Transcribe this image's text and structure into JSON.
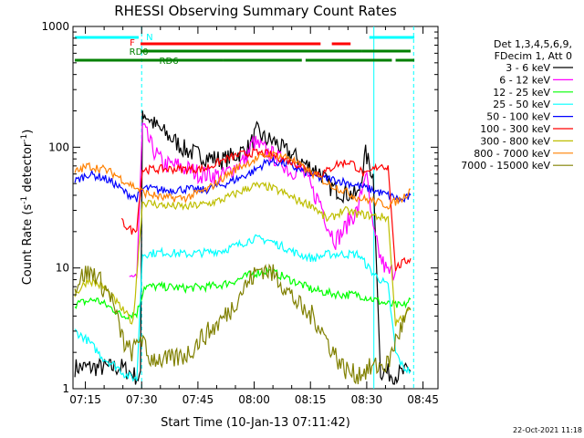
{
  "chart_data": {
    "type": "line",
    "title": "RHESSI Observing Summary Count Rates",
    "xlabel": "Start Time (10-Jan-13 07:11:42)",
    "ylabel": "Count Rate (s⁻¹ detector⁻¹)",
    "ylabel_main": "Count Rate (s",
    "ylabel_sup1": "-1",
    "ylabel_mid": " detector",
    "ylabel_sup2": "-1",
    "ylabel_end": ")",
    "y_scale": "log",
    "ylim": [
      1,
      1000
    ],
    "xlim": [
      "07:11:42",
      "08:49"
    ],
    "x_ticks": [
      "07:15",
      "07:30",
      "07:45",
      "08:00",
      "08:15",
      "08:30",
      "08:45"
    ],
    "y_ticks": [
      "1",
      "10",
      "100",
      "1000"
    ],
    "footer": "22-Oct-2021 11:18",
    "legend": {
      "header_lines": [
        "Det 1,3,4,5,6,9,",
        "FDecim 1, Att 0"
      ],
      "placement": "right"
    },
    "series": [
      {
        "name": "3 - 6 keV",
        "color": "#000000",
        "values": [
          [
            0.5,
            1.5
          ],
          [
            13,
            1.5
          ],
          [
            18,
            1.2
          ],
          [
            18.5,
            200
          ],
          [
            22,
            150
          ],
          [
            26,
            120
          ],
          [
            30,
            95
          ],
          [
            34,
            85
          ],
          [
            40,
            78
          ],
          [
            44,
            88
          ],
          [
            47,
            100
          ],
          [
            49,
            135
          ],
          [
            51,
            118
          ],
          [
            54,
            110
          ],
          [
            56,
            95
          ],
          [
            58,
            88
          ],
          [
            62,
            72
          ],
          [
            66,
            62
          ],
          [
            68,
            48
          ],
          [
            72,
            42
          ],
          [
            76,
            40
          ],
          [
            78,
            88
          ],
          [
            80,
            58
          ],
          [
            82,
            1.4
          ],
          [
            86,
            1.3
          ],
          [
            90,
            1.4
          ]
        ]
      },
      {
        "name": "6 - 12 keV",
        "color": "#ff00ff",
        "values": [
          [
            15,
            9
          ],
          [
            17,
            8
          ],
          [
            18.5,
            150
          ],
          [
            21,
            100
          ],
          [
            24,
            72
          ],
          [
            28,
            70
          ],
          [
            34,
            60
          ],
          [
            40,
            58
          ],
          [
            43,
            68
          ],
          [
            46,
            80
          ],
          [
            48,
            110
          ],
          [
            51,
            95
          ],
          [
            54,
            82
          ],
          [
            56,
            75
          ],
          [
            58,
            62
          ],
          [
            60,
            68
          ],
          [
            62,
            58
          ],
          [
            64,
            42
          ],
          [
            66,
            35
          ],
          [
            68,
            22
          ],
          [
            70,
            17
          ],
          [
            72,
            20
          ],
          [
            74,
            26
          ],
          [
            76,
            30
          ],
          [
            78,
            65
          ],
          [
            80,
            20
          ],
          [
            82,
            12
          ],
          [
            84,
            9
          ],
          [
            86,
            9.5
          ]
        ]
      },
      {
        "name": "12 - 25 keV",
        "color": "#00ff00",
        "values": [
          [
            0.5,
            5
          ],
          [
            6,
            5.5
          ],
          [
            11,
            4.5
          ],
          [
            13,
            4
          ],
          [
            17,
            4.2
          ],
          [
            19,
            7
          ],
          [
            24,
            7
          ],
          [
            30,
            6.8
          ],
          [
            36,
            7
          ],
          [
            40,
            7.3
          ],
          [
            44,
            8
          ],
          [
            48,
            9
          ],
          [
            52,
            9.5
          ],
          [
            56,
            8.5
          ],
          [
            60,
            7.5
          ],
          [
            64,
            6.6
          ],
          [
            68,
            6.2
          ],
          [
            72,
            6
          ],
          [
            76,
            6
          ],
          [
            80,
            5.5
          ],
          [
            84,
            5
          ],
          [
            88,
            4.8
          ],
          [
            90,
            5.5
          ]
        ]
      },
      {
        "name": "25 - 50 keV",
        "color": "#00ffff",
        "values": [
          [
            0.5,
            3
          ],
          [
            4,
            2.5
          ],
          [
            8,
            1.8
          ],
          [
            12,
            1.5
          ],
          [
            14,
            1.3
          ],
          [
            17,
            1.2
          ],
          [
            18.5,
            13
          ],
          [
            24,
            13.5
          ],
          [
            30,
            13
          ],
          [
            36,
            13.5
          ],
          [
            40,
            14
          ],
          [
            44,
            15.5
          ],
          [
            48,
            17.5
          ],
          [
            52,
            17
          ],
          [
            56,
            15
          ],
          [
            60,
            13
          ],
          [
            64,
            12
          ],
          [
            68,
            13
          ],
          [
            72,
            13
          ],
          [
            76,
            13
          ],
          [
            80,
            9
          ],
          [
            82,
            8
          ],
          [
            84,
            7
          ],
          [
            86,
            2
          ],
          [
            88,
            1.5
          ],
          [
            90,
            1.4
          ]
        ]
      },
      {
        "name": "50 - 100 keV",
        "color": "#0000ff",
        "values": [
          [
            0.5,
            52
          ],
          [
            4,
            60
          ],
          [
            8,
            56
          ],
          [
            11,
            50
          ],
          [
            14,
            42
          ],
          [
            17,
            38
          ],
          [
            19,
            46
          ],
          [
            24,
            44
          ],
          [
            30,
            45
          ],
          [
            35,
            44
          ],
          [
            40,
            49
          ],
          [
            44,
            55
          ],
          [
            48,
            63
          ],
          [
            52,
            77
          ],
          [
            56,
            74
          ],
          [
            58,
            70
          ],
          [
            62,
            62
          ],
          [
            66,
            55
          ],
          [
            68,
            55
          ],
          [
            72,
            52
          ],
          [
            76,
            48
          ],
          [
            80,
            44
          ],
          [
            84,
            40
          ],
          [
            86,
            38
          ],
          [
            88,
            36
          ],
          [
            90,
            40
          ]
        ]
      },
      {
        "name": "100 - 300 keV",
        "color": "#ff0000",
        "values": [
          [
            13,
            24
          ],
          [
            16,
            20
          ],
          [
            17,
            22
          ],
          [
            18.5,
            65
          ],
          [
            24,
            66
          ],
          [
            30,
            66
          ],
          [
            35,
            66
          ],
          [
            40,
            78
          ],
          [
            44,
            86
          ],
          [
            48,
            90
          ],
          [
            52,
            88
          ],
          [
            56,
            80
          ],
          [
            60,
            72
          ],
          [
            62,
            68
          ],
          [
            64,
            62
          ],
          [
            66,
            60
          ],
          [
            68,
            64
          ],
          [
            70,
            72
          ],
          [
            74,
            76
          ],
          [
            78,
            58
          ],
          [
            80,
            65
          ],
          [
            82,
            72
          ],
          [
            84,
            68
          ],
          [
            86,
            10
          ],
          [
            88,
            11
          ],
          [
            90,
            12
          ]
        ]
      },
      {
        "name": "300 - 800 keV",
        "color": "#bebe00",
        "values": [
          [
            0.5,
            6
          ],
          [
            4,
            8
          ],
          [
            8,
            7
          ],
          [
            12,
            5
          ],
          [
            14,
            4.2
          ],
          [
            16,
            3.5
          ],
          [
            18.5,
            35
          ],
          [
            24,
            33
          ],
          [
            30,
            32
          ],
          [
            36,
            34
          ],
          [
            40,
            37
          ],
          [
            44,
            42
          ],
          [
            48,
            48
          ],
          [
            52,
            47
          ],
          [
            56,
            42
          ],
          [
            60,
            36
          ],
          [
            64,
            33
          ],
          [
            66,
            28
          ],
          [
            68,
            25
          ],
          [
            72,
            30
          ],
          [
            76,
            28
          ],
          [
            80,
            27
          ],
          [
            84,
            26
          ],
          [
            86,
            3.5
          ],
          [
            88,
            4
          ],
          [
            90,
            4.5
          ]
        ]
      },
      {
        "name": "800 - 7000 keV",
        "color": "#ff8000",
        "values": [
          [
            0.5,
            62
          ],
          [
            4,
            70
          ],
          [
            8,
            66
          ],
          [
            11,
            60
          ],
          [
            14,
            52
          ],
          [
            17,
            46
          ],
          [
            19,
            42
          ],
          [
            24,
            38
          ],
          [
            30,
            38
          ],
          [
            36,
            45
          ],
          [
            40,
            56
          ],
          [
            44,
            68
          ],
          [
            48,
            78
          ],
          [
            52,
            87
          ],
          [
            54,
            86
          ],
          [
            58,
            82
          ],
          [
            60,
            72
          ],
          [
            64,
            60
          ],
          [
            68,
            50
          ],
          [
            72,
            44
          ],
          [
            76,
            38
          ],
          [
            80,
            36
          ],
          [
            84,
            33
          ],
          [
            88,
            38
          ],
          [
            90,
            45
          ]
        ]
      },
      {
        "name": "7000 - 15000 keV",
        "color": "#808000",
        "values": [
          [
            0.5,
            7
          ],
          [
            3,
            9
          ],
          [
            6,
            9
          ],
          [
            8,
            7
          ],
          [
            10,
            6
          ],
          [
            12,
            3.5
          ],
          [
            14,
            2.2
          ],
          [
            16,
            2
          ],
          [
            18,
            2.8
          ],
          [
            20,
            1.8
          ],
          [
            22,
            1.8
          ],
          [
            25,
            1.7
          ],
          [
            28,
            1.8
          ],
          [
            31,
            2
          ],
          [
            34,
            2.6
          ],
          [
            38,
            3.3
          ],
          [
            42,
            4.5
          ],
          [
            45,
            6.5
          ],
          [
            48,
            8.5
          ],
          [
            50,
            10
          ],
          [
            52,
            9.5
          ],
          [
            55,
            8
          ],
          [
            58,
            6
          ],
          [
            62,
            4.2
          ],
          [
            64,
            4
          ],
          [
            66,
            3.2
          ],
          [
            68,
            2.4
          ],
          [
            72,
            1.5
          ],
          [
            75,
            1.3
          ],
          [
            80,
            1.5
          ],
          [
            84,
            1.6
          ],
          [
            86,
            2.5
          ],
          [
            88,
            3.5
          ],
          [
            90,
            4.5
          ]
        ]
      }
    ],
    "flag_bars": [
      {
        "label": "N",
        "color": "#00ffff",
        "segments": [
          [
            0.5,
            17.5
          ],
          [
            79,
            91
          ]
        ]
      },
      {
        "label": "F",
        "color": "#ff0000",
        "segments": [
          [
            18,
            66
          ],
          [
            69,
            74
          ]
        ]
      },
      {
        "label": "RD0",
        "color": "#008000",
        "segments": [
          [
            18,
            77
          ],
          [
            77,
            90
          ]
        ]
      },
      {
        "label": "RD6",
        "color": "#008000",
        "segments": [
          [
            0.5,
            40
          ],
          [
            40,
            61
          ],
          [
            62,
            85
          ],
          [
            86,
            91
          ]
        ]
      }
    ]
  }
}
